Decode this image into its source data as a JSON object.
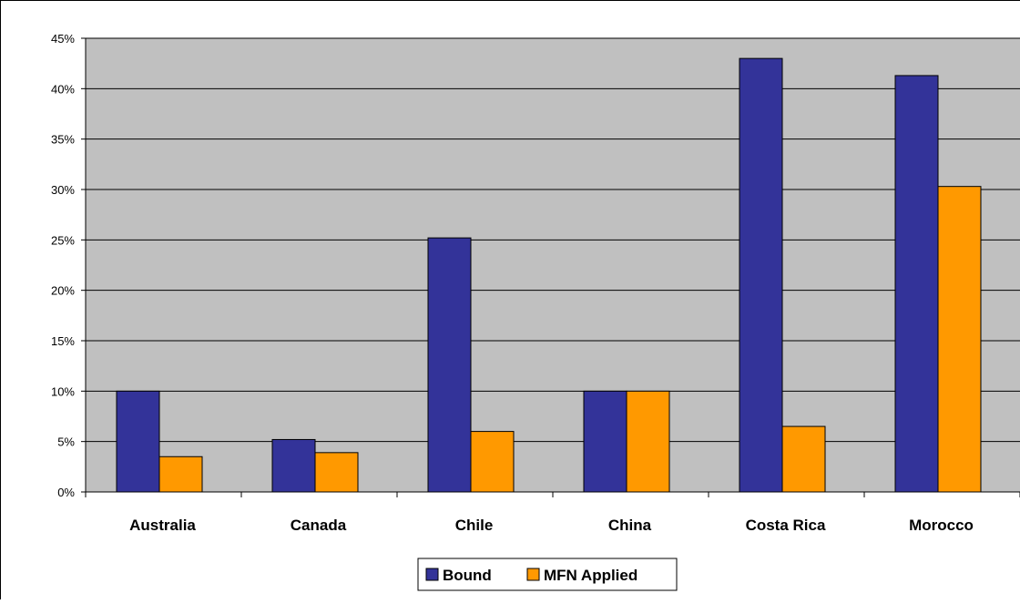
{
  "chart_data": {
    "type": "bar",
    "categories": [
      "Australia",
      "Canada",
      "Chile",
      "China",
      "Costa Rica",
      "Morocco"
    ],
    "series": [
      {
        "name": "Bound",
        "values": [
          10,
          5.2,
          25.2,
          10,
          43,
          41.3
        ],
        "color": "#333399"
      },
      {
        "name": "MFN Applied",
        "values": [
          3.5,
          3.9,
          6,
          10,
          6.5,
          30.3
        ],
        "color": "#FF9900"
      }
    ],
    "title": "",
    "xlabel": "",
    "ylabel": "",
    "ylim": [
      0,
      45
    ],
    "yticks": [
      "0%",
      "5%",
      "10%",
      "15%",
      "20%",
      "25%",
      "30%",
      "35%",
      "40%",
      "45%"
    ],
    "grid": true,
    "plot_background": "#C0C0C0",
    "legend_position": "bottom"
  }
}
